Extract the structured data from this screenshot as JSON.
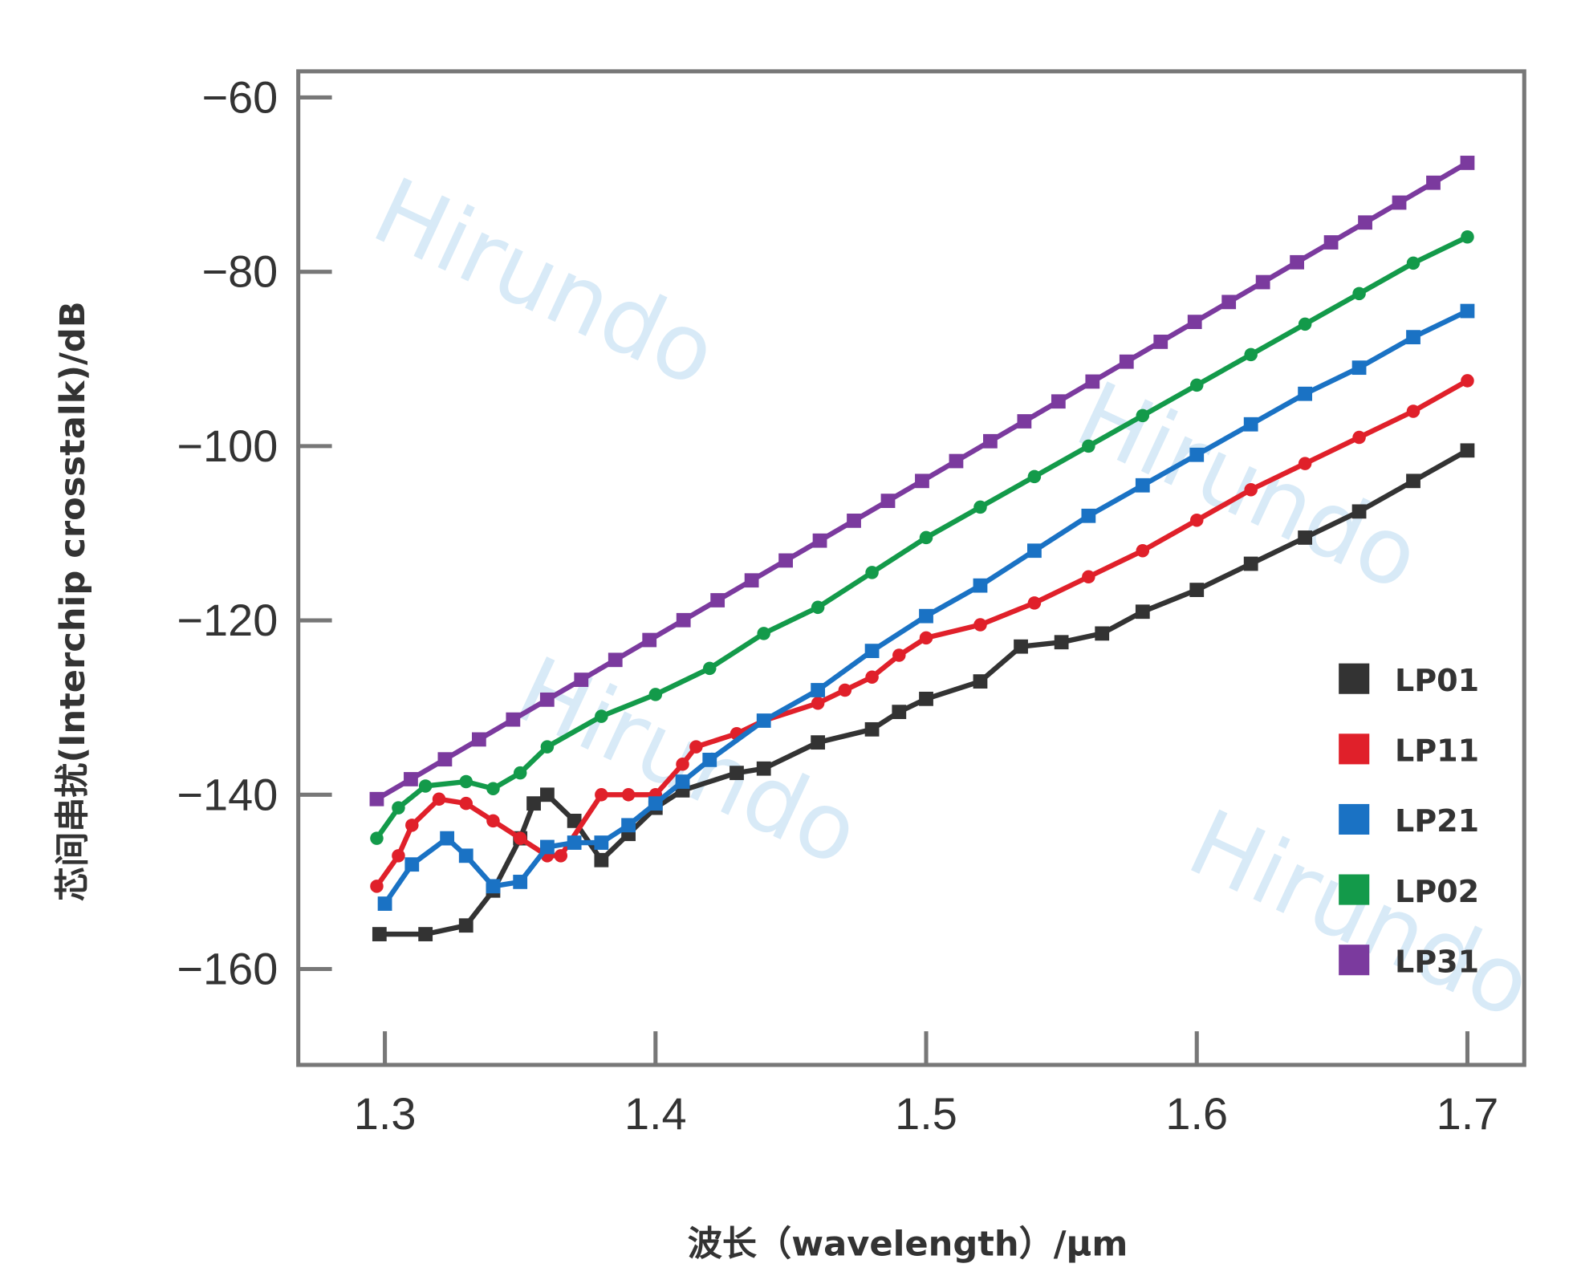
{
  "chart_data": {
    "type": "line",
    "title": "",
    "xlabel": "波长（wavelength）/μm",
    "ylabel": "芯间串扰(Interchip crosstalk)/dB",
    "xlim": [
      1.268,
      1.721
    ],
    "ylim": [
      -171,
      -57
    ],
    "xticks": [
      1.3,
      1.4,
      1.5,
      1.6,
      1.7
    ],
    "xtick_labels": [
      "1.3",
      "1.4",
      "1.5",
      "1.6",
      "1.7"
    ],
    "yticks": [
      -60,
      -80,
      -100,
      -120,
      -140,
      -160
    ],
    "ytick_labels": [
      "−60",
      "−80",
      "−100",
      "−120",
      "−140",
      "−160"
    ],
    "grid": false,
    "legend_position": "bottom-right",
    "watermark": "Hirundo",
    "series": [
      {
        "name": "LP01",
        "color": "#333333",
        "marker": "square",
        "x": [
          1.298,
          1.315,
          1.33,
          1.34,
          1.35,
          1.355,
          1.36,
          1.37,
          1.38,
          1.39,
          1.4,
          1.41,
          1.43,
          1.44,
          1.46,
          1.48,
          1.49,
          1.5,
          1.52,
          1.535,
          1.55,
          1.565,
          1.58,
          1.6,
          1.62,
          1.64,
          1.66,
          1.68,
          1.7
        ],
        "y": [
          -156,
          -156,
          -155,
          -151,
          -145,
          -141,
          -140,
          -143,
          -147.5,
          -144.5,
          -141.5,
          -139.5,
          -137.5,
          -137,
          -134,
          -132.5,
          -130.5,
          -129,
          -127,
          -123,
          -122.5,
          -121.5,
          -119,
          -116.5,
          -113.5,
          -110.5,
          -107.5,
          -104,
          -100.5
        ]
      },
      {
        "name": "LP11",
        "color": "#e0202a",
        "marker": "circle",
        "x": [
          1.297,
          1.305,
          1.31,
          1.32,
          1.33,
          1.34,
          1.35,
          1.36,
          1.365,
          1.38,
          1.39,
          1.4,
          1.41,
          1.415,
          1.43,
          1.44,
          1.46,
          1.47,
          1.48,
          1.49,
          1.5,
          1.52,
          1.54,
          1.56,
          1.58,
          1.6,
          1.62,
          1.64,
          1.66,
          1.68,
          1.7
        ],
        "y": [
          -150.5,
          -147,
          -143.5,
          -140.5,
          -141,
          -143,
          -145,
          -147,
          -147,
          -140,
          -140,
          -140,
          -136.5,
          -134.5,
          -133,
          -131.5,
          -129.5,
          -128,
          -126.5,
          -124,
          -122,
          -120.5,
          -118,
          -115,
          -112,
          -108.5,
          -105,
          -102,
          -99,
          -96,
          -92.5
        ]
      },
      {
        "name": "LP21",
        "color": "#1a72c4",
        "marker": "square",
        "x": [
          1.3,
          1.31,
          1.323,
          1.33,
          1.34,
          1.35,
          1.36,
          1.37,
          1.38,
          1.39,
          1.4,
          1.41,
          1.42,
          1.44,
          1.46,
          1.48,
          1.5,
          1.52,
          1.54,
          1.56,
          1.58,
          1.6,
          1.62,
          1.64,
          1.66,
          1.68,
          1.7
        ],
        "y": [
          -152.5,
          -148,
          -145,
          -147,
          -150.5,
          -150,
          -146,
          -145.5,
          -145.5,
          -143.5,
          -141,
          -138.5,
          -136,
          -131.5,
          -128,
          -123.5,
          -119.5,
          -116,
          -112,
          -108,
          -104.5,
          -101,
          -97.5,
          -94,
          -91,
          -87.5,
          -84.5
        ]
      },
      {
        "name": "LP02",
        "color": "#139a4a",
        "marker": "circle",
        "x": [
          1.297,
          1.305,
          1.315,
          1.33,
          1.34,
          1.35,
          1.36,
          1.38,
          1.4,
          1.42,
          1.44,
          1.46,
          1.48,
          1.5,
          1.52,
          1.54,
          1.56,
          1.58,
          1.6,
          1.62,
          1.64,
          1.66,
          1.68,
          1.7
        ],
        "y": [
          -145,
          -141.5,
          -139,
          -138.5,
          -139.3,
          -137.5,
          -134.5,
          -131,
          -128.5,
          -125.5,
          -121.5,
          -118.5,
          -114.5,
          -110.5,
          -107,
          -103.5,
          -100,
          -96.5,
          -93,
          -89.5,
          -86,
          -82.5,
          -79,
          -76
        ]
      },
      {
        "name": "LP31",
        "color": "#7b3a9e",
        "marker": "square",
        "x": [
          1.297,
          1.7
        ],
        "y": [
          -140.5,
          -67.5
        ]
      }
    ]
  }
}
